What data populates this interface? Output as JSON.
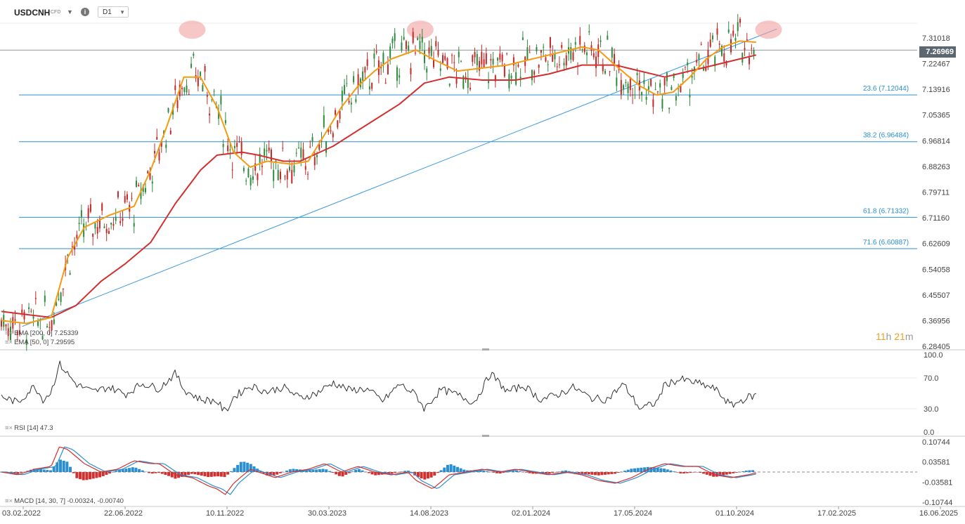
{
  "header": {
    "symbol": "USDCNH",
    "instrument_type": "CFD",
    "timeframe": "D1"
  },
  "colors": {
    "ema200": "#d32f2f",
    "ema50": "#f39c12",
    "fib_line": "#2a8fd0",
    "trendline": "#3a9ae0",
    "candle_up": "#2e8b3e",
    "candle_down": "#c62828",
    "rsi_line": "#333333",
    "macd_line": "#d32f2f",
    "macd_signal": "#2a8fd0",
    "hist_up": "#2a8fd0",
    "hist_down": "#d32f2f",
    "highlight_circle": "#f2a0a0"
  },
  "price_tag": "7.26969",
  "timer": {
    "hours": "11",
    "h_unit": "h",
    "minutes": "21",
    "m_unit": "m"
  },
  "legends": {
    "ema200": "EMA  [200,  0]  7.25339",
    "ema50": "EMA  [50,  0]  7.29595",
    "rsi": "RSI  [14]  47.3",
    "macd": "MACD  [14,  30,  7]  -0.00324,  -0.00740"
  },
  "price_axis": [
    "7.31018",
    "7.22467",
    "7.13916",
    "7.05365",
    "6.96814",
    "6.88263",
    "6.79711",
    "6.71160",
    "6.62609",
    "6.54058",
    "6.45507",
    "6.36956",
    "6.28405"
  ],
  "rsi_axis": [
    "100.0",
    "70.0",
    "30.0",
    "0.0"
  ],
  "macd_axis": [
    "0.10744",
    "0.03581",
    "-0.03581",
    "-0.10744"
  ],
  "date_axis": [
    "03.02.2022",
    "22.06.2022",
    "10.11.2022",
    "30.03.2023",
    "14.08.2023",
    "02.01.2024",
    "17.05.2024",
    "01.10.2024",
    "17.02.2025",
    "16.06.2025"
  ],
  "fib_levels": [
    {
      "label": "23.6 (7.12044)",
      "value": 7.12044
    },
    {
      "label": "38.2 (6.96484)",
      "value": 6.96484
    },
    {
      "label": "61.8 (6.71332)",
      "value": 6.71332
    },
    {
      "label": "71.6 (6.60887)",
      "value": 6.60887
    }
  ],
  "chart_data": {
    "type": "line",
    "title": "USDCNH",
    "ylim": [
      6.28405,
      7.35
    ],
    "current_price": 7.26969,
    "x": [
      "03.02.2022",
      "22.06.2022",
      "10.11.2022",
      "30.03.2023",
      "14.08.2023",
      "02.01.2024",
      "17.05.2024",
      "01.10.2024",
      "17.02.2025"
    ],
    "series": [
      {
        "name": "EMA [200, 0]",
        "points": [
          [
            0.0,
            6.4
          ],
          [
            0.03,
            6.39
          ],
          [
            0.06,
            6.38
          ],
          [
            0.09,
            6.42
          ],
          [
            0.12,
            6.5
          ],
          [
            0.15,
            6.56
          ],
          [
            0.18,
            6.63
          ],
          [
            0.21,
            6.76
          ],
          [
            0.24,
            6.87
          ],
          [
            0.26,
            6.92
          ],
          [
            0.29,
            6.93
          ],
          [
            0.31,
            6.92
          ],
          [
            0.34,
            6.9
          ],
          [
            0.36,
            6.9
          ],
          [
            0.4,
            6.95
          ],
          [
            0.44,
            7.02
          ],
          [
            0.48,
            7.09
          ],
          [
            0.51,
            7.16
          ],
          [
            0.54,
            7.18
          ],
          [
            0.58,
            7.17
          ],
          [
            0.62,
            7.17
          ],
          [
            0.66,
            7.19
          ],
          [
            0.7,
            7.22
          ],
          [
            0.74,
            7.22
          ],
          [
            0.77,
            7.2
          ],
          [
            0.8,
            7.18
          ],
          [
            0.83,
            7.2
          ],
          [
            0.86,
            7.22
          ],
          [
            0.89,
            7.24
          ],
          [
            0.91,
            7.25339
          ]
        ]
      },
      {
        "name": "EMA [50, 0]",
        "points": [
          [
            0.0,
            6.37
          ],
          [
            0.03,
            6.36
          ],
          [
            0.06,
            6.38
          ],
          [
            0.08,
            6.58
          ],
          [
            0.1,
            6.68
          ],
          [
            0.13,
            6.72
          ],
          [
            0.16,
            6.75
          ],
          [
            0.18,
            6.87
          ],
          [
            0.2,
            7.02
          ],
          [
            0.22,
            7.18
          ],
          [
            0.24,
            7.18
          ],
          [
            0.26,
            7.08
          ],
          [
            0.28,
            6.93
          ],
          [
            0.3,
            6.88
          ],
          [
            0.32,
            6.9
          ],
          [
            0.35,
            6.89
          ],
          [
            0.37,
            6.9
          ],
          [
            0.39,
            6.99
          ],
          [
            0.41,
            7.08
          ],
          [
            0.43,
            7.15
          ],
          [
            0.45,
            7.2
          ],
          [
            0.47,
            7.24
          ],
          [
            0.5,
            7.27
          ],
          [
            0.52,
            7.24
          ],
          [
            0.55,
            7.2
          ],
          [
            0.58,
            7.21
          ],
          [
            0.61,
            7.22
          ],
          [
            0.64,
            7.24
          ],
          [
            0.67,
            7.26
          ],
          [
            0.7,
            7.28
          ],
          [
            0.72,
            7.27
          ],
          [
            0.74,
            7.22
          ],
          [
            0.77,
            7.15
          ],
          [
            0.79,
            7.12
          ],
          [
            0.81,
            7.13
          ],
          [
            0.83,
            7.18
          ],
          [
            0.85,
            7.24
          ],
          [
            0.87,
            7.28
          ],
          [
            0.89,
            7.3
          ],
          [
            0.91,
            7.29595
          ]
        ]
      }
    ],
    "rsi": {
      "name": "RSI [14]",
      "ylim": [
        0,
        100
      ],
      "last": 47.3,
      "points": [
        [
          0.0,
          46
        ],
        [
          0.02,
          38
        ],
        [
          0.04,
          60
        ],
        [
          0.05,
          42
        ],
        [
          0.06,
          52
        ],
        [
          0.07,
          88
        ],
        [
          0.09,
          62
        ],
        [
          0.11,
          52
        ],
        [
          0.13,
          58
        ],
        [
          0.15,
          49
        ],
        [
          0.17,
          63
        ],
        [
          0.19,
          56
        ],
        [
          0.21,
          76
        ],
        [
          0.22,
          55
        ],
        [
          0.24,
          42
        ],
        [
          0.26,
          40
        ],
        [
          0.27,
          25
        ],
        [
          0.28,
          45
        ],
        [
          0.3,
          60
        ],
        [
          0.32,
          52
        ],
        [
          0.34,
          58
        ],
        [
          0.36,
          44
        ],
        [
          0.38,
          50
        ],
        [
          0.4,
          64
        ],
        [
          0.42,
          54
        ],
        [
          0.44,
          56
        ],
        [
          0.46,
          40
        ],
        [
          0.48,
          62
        ],
        [
          0.5,
          48
        ],
        [
          0.51,
          30
        ],
        [
          0.53,
          55
        ],
        [
          0.55,
          48
        ],
        [
          0.57,
          38
        ],
        [
          0.59,
          76
        ],
        [
          0.61,
          52
        ],
        [
          0.63,
          60
        ],
        [
          0.65,
          42
        ],
        [
          0.67,
          48
        ],
        [
          0.69,
          58
        ],
        [
          0.71,
          44
        ],
        [
          0.73,
          42
        ],
        [
          0.75,
          62
        ],
        [
          0.77,
          30
        ],
        [
          0.79,
          38
        ],
        [
          0.8,
          62
        ],
        [
          0.82,
          68
        ],
        [
          0.84,
          63
        ],
        [
          0.86,
          56
        ],
        [
          0.88,
          34
        ],
        [
          0.9,
          45
        ],
        [
          0.91,
          47.3
        ]
      ]
    },
    "macd": {
      "name": "MACD [14, 30, 7]",
      "ylim": [
        -0.10744,
        0.10744
      ],
      "last_macd": -0.00324,
      "last_signal": -0.0074,
      "points": [
        [
          0.0,
          0.0
        ],
        [
          0.02,
          -0.01
        ],
        [
          0.04,
          0.01
        ],
        [
          0.06,
          0.02
        ],
        [
          0.07,
          0.09
        ],
        [
          0.08,
          0.08
        ],
        [
          0.1,
          0.03
        ],
        [
          0.12,
          0.0
        ],
        [
          0.14,
          0.01
        ],
        [
          0.16,
          0.04
        ],
        [
          0.18,
          0.03
        ],
        [
          0.19,
          0.03
        ],
        [
          0.21,
          -0.01
        ],
        [
          0.23,
          -0.02
        ],
        [
          0.25,
          -0.05
        ],
        [
          0.26,
          -0.06
        ],
        [
          0.27,
          -0.08
        ],
        [
          0.28,
          -0.04
        ],
        [
          0.3,
          0.01
        ],
        [
          0.31,
          0.0
        ],
        [
          0.33,
          -0.02
        ],
        [
          0.35,
          0.0
        ],
        [
          0.37,
          0.01
        ],
        [
          0.39,
          0.03
        ],
        [
          0.41,
          0.0
        ],
        [
          0.43,
          0.02
        ],
        [
          0.45,
          0.0
        ],
        [
          0.47,
          -0.01
        ],
        [
          0.49,
          0.0
        ],
        [
          0.5,
          -0.03
        ],
        [
          0.52,
          -0.06
        ],
        [
          0.54,
          -0.01
        ],
        [
          0.56,
          0.0
        ],
        [
          0.58,
          0.01
        ],
        [
          0.6,
          0.0
        ],
        [
          0.62,
          0.01
        ],
        [
          0.64,
          0.0
        ],
        [
          0.66,
          -0.01
        ],
        [
          0.68,
          0.0
        ],
        [
          0.7,
          -0.01
        ],
        [
          0.72,
          -0.03
        ],
        [
          0.74,
          -0.04
        ],
        [
          0.76,
          -0.02
        ],
        [
          0.78,
          0.01
        ],
        [
          0.8,
          0.03
        ],
        [
          0.82,
          0.02
        ],
        [
          0.84,
          0.02
        ],
        [
          0.86,
          -0.01
        ],
        [
          0.88,
          -0.02
        ],
        [
          0.9,
          -0.01
        ],
        [
          0.91,
          -0.00324
        ]
      ]
    },
    "annotations": [
      "23.6 (7.12044)",
      "38.2 (6.96484)",
      "61.8 (6.71332)",
      "71.6 (6.60887)"
    ]
  }
}
